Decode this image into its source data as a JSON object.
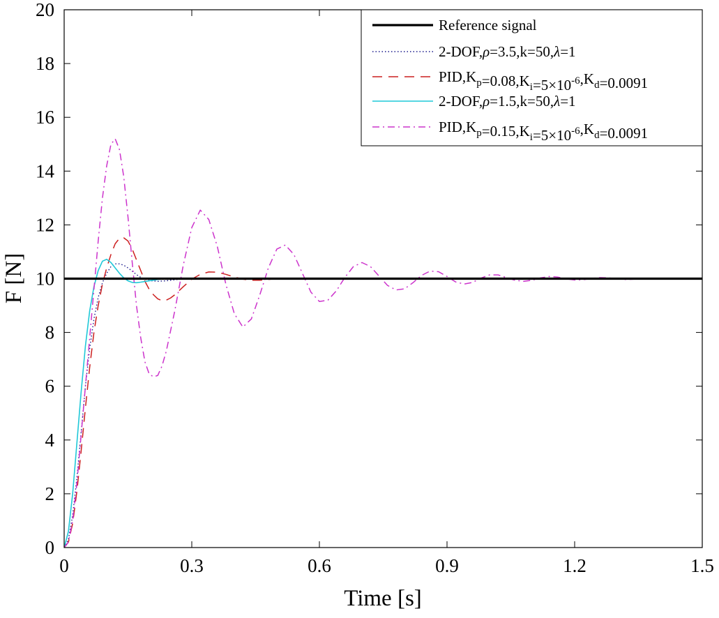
{
  "chart_data": {
    "type": "line",
    "xlabel": "Time [s]",
    "ylabel": "F [N]",
    "xlim": [
      0,
      1.5
    ],
    "ylim": [
      0,
      20
    ],
    "xticks": [
      0,
      0.3,
      0.6,
      0.9,
      1.2,
      1.5
    ],
    "xtick_labels": [
      "0",
      "0.3",
      "0.6",
      "0.9",
      "1.2",
      "1.5"
    ],
    "yticks": [
      0,
      2,
      4,
      6,
      8,
      10,
      12,
      14,
      16,
      18,
      20
    ],
    "ytick_labels": [
      "0",
      "2",
      "4",
      "6",
      "8",
      "10",
      "12",
      "14",
      "16",
      "18",
      "20"
    ],
    "grid": false,
    "legend_position": "top-right",
    "series": [
      {
        "name": "Reference signal",
        "legend": [
          {
            "t": "Reference signal"
          }
        ],
        "color": "#000000",
        "style": "solid-thick",
        "x": [
          0,
          1.5
        ],
        "y": [
          10,
          10
        ]
      },
      {
        "name": "2-DOF, ρ=3.5, k=50, λ=1",
        "legend": [
          {
            "t": "2-DOF,"
          },
          {
            "t": "ρ",
            "i": true
          },
          {
            "t": "=3.5,k=50,"
          },
          {
            "t": "λ",
            "i": true
          },
          {
            "t": "=1"
          }
        ],
        "color": "#1a1a8c",
        "style": "dotted",
        "x": [
          0,
          0.01,
          0.02,
          0.03,
          0.04,
          0.05,
          0.06,
          0.07,
          0.08,
          0.09,
          0.1,
          0.11,
          0.12,
          0.13,
          0.14,
          0.15,
          0.16,
          0.17,
          0.18,
          0.19,
          0.2,
          0.22,
          0.24,
          0.26,
          0.28,
          0.3,
          0.35,
          0.4,
          1.5
        ],
        "y": [
          0,
          0.3,
          1.2,
          2.6,
          4.3,
          6.0,
          7.4,
          8.5,
          9.3,
          9.85,
          10.2,
          10.45,
          10.55,
          10.55,
          10.5,
          10.4,
          10.28,
          10.15,
          10.05,
          9.98,
          9.93,
          9.9,
          9.92,
          9.96,
          9.99,
          10.0,
          10.0,
          10.0,
          10.0
        ]
      },
      {
        "name": "PID, Kp=0.08, Ki=5×10^-6, Kd=0.0091",
        "legend": [
          {
            "t": "PID,K"
          },
          {
            "t": "p",
            "sub": true
          },
          {
            "t": "=0.08,K"
          },
          {
            "t": "i",
            "sub": true
          },
          {
            "t": "=5×10"
          },
          {
            "t": "-6",
            "sup": true
          },
          {
            "t": ",K"
          },
          {
            "t": "d",
            "sub": true
          },
          {
            "t": "=0.0091"
          }
        ],
        "color": "#cc1f1f",
        "style": "dashed",
        "x": [
          0,
          0.01,
          0.02,
          0.03,
          0.04,
          0.05,
          0.06,
          0.07,
          0.08,
          0.09,
          0.1,
          0.11,
          0.12,
          0.13,
          0.14,
          0.15,
          0.16,
          0.17,
          0.18,
          0.19,
          0.2,
          0.21,
          0.22,
          0.23,
          0.24,
          0.25,
          0.26,
          0.28,
          0.3,
          0.32,
          0.34,
          0.36,
          0.38,
          0.4,
          0.42,
          0.44,
          0.46,
          0.48,
          0.5,
          0.55,
          0.6,
          1.5
        ],
        "y": [
          0,
          0.2,
          0.9,
          2.1,
          3.6,
          5.2,
          6.7,
          8.0,
          9.0,
          9.8,
          10.4,
          10.9,
          11.3,
          11.5,
          11.52,
          11.4,
          11.1,
          10.7,
          10.3,
          9.9,
          9.6,
          9.4,
          9.25,
          9.18,
          9.2,
          9.28,
          9.4,
          9.7,
          9.98,
          10.16,
          10.25,
          10.24,
          10.16,
          10.06,
          9.98,
          9.94,
          9.94,
          9.97,
          10.0,
          10.01,
          10.0,
          10.0
        ]
      },
      {
        "name": "2-DOF, ρ=1.5, k=50, λ=1",
        "legend": [
          {
            "t": "2-DOF,"
          },
          {
            "t": "ρ",
            "i": true
          },
          {
            "t": "=1.5,k=50,"
          },
          {
            "t": "λ",
            "i": true
          },
          {
            "t": "=1"
          }
        ],
        "color": "#1fc8d8",
        "style": "solid",
        "x": [
          0,
          0.01,
          0.02,
          0.03,
          0.04,
          0.05,
          0.06,
          0.07,
          0.08,
          0.09,
          0.1,
          0.11,
          0.12,
          0.13,
          0.14,
          0.15,
          0.16,
          0.17,
          0.18,
          0.2,
          0.22,
          0.24,
          0.26,
          0.3,
          1.5
        ],
        "y": [
          0,
          0.6,
          2.0,
          3.9,
          5.8,
          7.5,
          8.8,
          9.7,
          10.3,
          10.65,
          10.72,
          10.6,
          10.4,
          10.2,
          10.03,
          9.92,
          9.86,
          9.85,
          9.87,
          9.92,
          9.97,
          10.0,
          10.01,
          10.0,
          10.0
        ]
      },
      {
        "name": "PID, Kp=0.15, Ki=5×10^-6, Kd=0.0091",
        "legend": [
          {
            "t": "PID,K"
          },
          {
            "t": "p",
            "sub": true
          },
          {
            "t": "=0.15,K"
          },
          {
            "t": "i",
            "sub": true
          },
          {
            "t": "=5×10"
          },
          {
            "t": "-6",
            "sup": true
          },
          {
            "t": ",K"
          },
          {
            "t": "d",
            "sub": true
          },
          {
            "t": "=0.0091"
          }
        ],
        "color": "#cc33cc",
        "style": "dashdot",
        "x": [
          0,
          0.01,
          0.02,
          0.03,
          0.04,
          0.05,
          0.06,
          0.07,
          0.08,
          0.09,
          0.1,
          0.11,
          0.12,
          0.13,
          0.14,
          0.15,
          0.16,
          0.17,
          0.18,
          0.19,
          0.2,
          0.21,
          0.22,
          0.23,
          0.24,
          0.26,
          0.28,
          0.3,
          0.32,
          0.34,
          0.36,
          0.38,
          0.4,
          0.42,
          0.44,
          0.46,
          0.48,
          0.5,
          0.52,
          0.54,
          0.56,
          0.58,
          0.6,
          0.62,
          0.64,
          0.66,
          0.68,
          0.7,
          0.72,
          0.74,
          0.76,
          0.78,
          0.8,
          0.82,
          0.84,
          0.86,
          0.88,
          0.9,
          0.92,
          0.94,
          0.96,
          0.98,
          1.0,
          1.02,
          1.04,
          1.06,
          1.08,
          1.1,
          1.12,
          1.14,
          1.16,
          1.18,
          1.2,
          1.22,
          1.24,
          1.26,
          1.28,
          1.3,
          1.32,
          1.34,
          1.36,
          1.38,
          1.4,
          1.42,
          1.44,
          1.46,
          1.48,
          1.5
        ],
        "y": [
          0,
          0.2,
          1.0,
          2.4,
          4.2,
          6.0,
          7.8,
          9.6,
          11.4,
          13.0,
          14.2,
          15.0,
          15.2,
          14.8,
          13.8,
          12.3,
          10.6,
          9.0,
          7.8,
          6.9,
          6.45,
          6.35,
          6.4,
          6.75,
          7.3,
          8.8,
          10.5,
          11.9,
          12.55,
          12.2,
          11.2,
          9.8,
          8.7,
          8.2,
          8.5,
          9.4,
          10.4,
          11.1,
          11.25,
          10.9,
          10.2,
          9.5,
          9.15,
          9.2,
          9.55,
          10.05,
          10.45,
          10.6,
          10.45,
          10.1,
          9.75,
          9.58,
          9.62,
          9.85,
          10.12,
          10.28,
          10.26,
          10.08,
          9.88,
          9.8,
          9.86,
          10.02,
          10.14,
          10.14,
          10.04,
          9.94,
          9.9,
          9.94,
          10.03,
          10.08,
          10.06,
          9.99,
          9.95,
          9.96,
          10.01,
          10.04,
          10.03,
          9.99,
          9.97,
          9.98,
          10.01,
          10.02,
          10.01,
          9.99,
          9.98,
          10.0,
          10.01,
          10.0
        ]
      }
    ]
  }
}
